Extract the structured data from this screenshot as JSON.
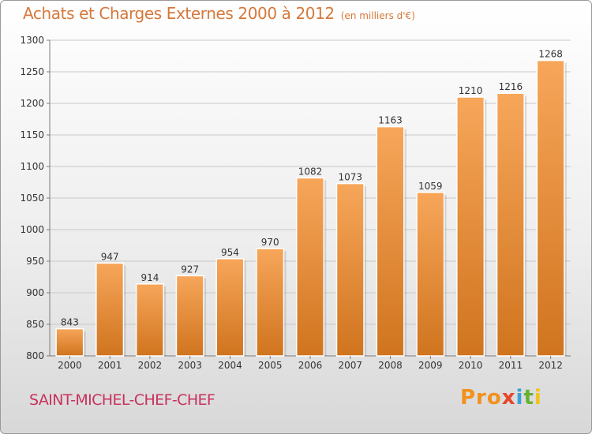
{
  "title": "Achats et Charges Externes 2000 à 2012",
  "subtitle": "(en milliers d'€)",
  "commune": "SAINT-MICHEL-CHEF-CHEF",
  "logo": {
    "letters": [
      "Pro",
      "x",
      "i",
      "t",
      "i"
    ]
  },
  "colors": {
    "bar_light": "#f7a65a",
    "bar_dark": "#d0741e",
    "title": "#d6783a",
    "commune": "#c8315e",
    "axis": "#7a7a7a",
    "grid": "#c8c8c8"
  },
  "chart_data": {
    "type": "bar",
    "categories": [
      "2000",
      "2001",
      "2002",
      "2003",
      "2004",
      "2005",
      "2006",
      "2007",
      "2008",
      "2009",
      "2010",
      "2011",
      "2012"
    ],
    "values": [
      843,
      947,
      914,
      927,
      954,
      970,
      1082,
      1073,
      1163,
      1059,
      1210,
      1216,
      1268
    ],
    "ylim": [
      800,
      1300
    ],
    "yticks": [
      800,
      850,
      900,
      950,
      1000,
      1050,
      1100,
      1150,
      1200,
      1250,
      1300
    ],
    "grid": true,
    "xlabel": "",
    "ylabel": ""
  }
}
